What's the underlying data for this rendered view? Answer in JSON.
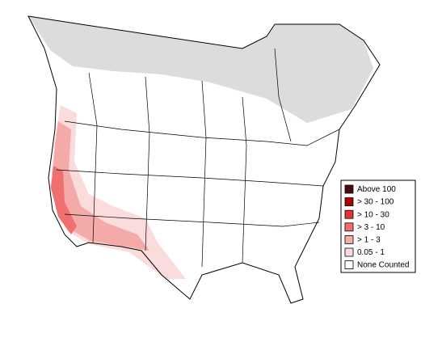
{
  "legend": {
    "items": [
      {
        "label": "Above 100",
        "color": "#4a0a0a"
      },
      {
        "label": "> 30 - 100",
        "color": "#b00000"
      },
      {
        "label": "> 10 - 30",
        "color": "#e83030"
      },
      {
        "label": "> 3 - 10",
        "color": "#f07070"
      },
      {
        "label": "> 1 - 3",
        "color": "#f5aaaa"
      },
      {
        "label": "0.05 - 1",
        "color": "#fbdcdc"
      },
      {
        "label": "None Counted",
        "color": "#ffffff"
      }
    ]
  }
}
